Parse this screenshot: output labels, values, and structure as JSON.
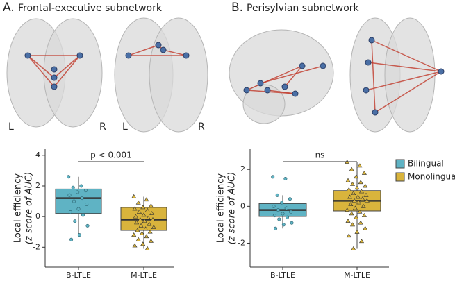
{
  "chart_data": [
    {
      "type": "box",
      "title": "A.",
      "subtitle": "Frontal-executive subnetwork",
      "brain_labels": [
        "L",
        "R",
        "L",
        "R"
      ],
      "y_label": "Local efficiency",
      "y_label_2": "(z score of AUC)",
      "annotation": "p < 0.001",
      "categories": [
        "B-LTLE",
        "M-LTLE"
      ],
      "ylim": [
        -3.3,
        4.4
      ],
      "yticks": [
        -2,
        0,
        2,
        4
      ],
      "series": [
        {
          "color": "#5fb3c4",
          "marker": "circle",
          "box": {
            "whisker_low": -1.2,
            "q1": 0.2,
            "median": 1.2,
            "q3": 1.8,
            "whisker_high": 2.6
          },
          "points": [
            2.6,
            2.0,
            1.9,
            1.7,
            1.6,
            1.4,
            1.2,
            1.0,
            0.8,
            0.5,
            0.3,
            0.1,
            -0.3,
            -0.6,
            -1.2,
            -1.5
          ]
        },
        {
          "color": "#d9b43c",
          "marker": "triangle",
          "box": {
            "whisker_low": -2.1,
            "q1": -0.9,
            "median": -0.2,
            "q3": 0.6,
            "whisker_high": 1.3
          },
          "points": [
            1.3,
            1.1,
            0.9,
            0.7,
            0.6,
            0.5,
            0.4,
            0.3,
            0.2,
            0.1,
            0.0,
            -0.1,
            -0.2,
            -0.2,
            -0.3,
            -0.4,
            -0.5,
            -0.6,
            -0.7,
            -0.8,
            -0.9,
            -1.0,
            -1.1,
            -1.2,
            -1.3,
            -1.5,
            -1.6,
            -1.8,
            -1.9,
            -2.1
          ]
        }
      ]
    },
    {
      "type": "box",
      "title": "B.",
      "subtitle": "Perisylvian subnetwork",
      "y_label": "Local efficiency",
      "y_label_2": "(z score of AUC)",
      "annotation": "ns",
      "legend": "right",
      "categories": [
        "B-LTLE",
        "M-LTLE"
      ],
      "ylim": [
        -3.3,
        3.1
      ],
      "yticks": [
        -2,
        0,
        2
      ],
      "series": [
        {
          "name": "Bilingual",
          "color": "#5fb3c4",
          "marker": "circle",
          "box": {
            "whisker_low": -1.2,
            "q1": -0.55,
            "median": -0.2,
            "q3": 0.15,
            "whisker_high": 0.6
          },
          "points": [
            1.6,
            1.5,
            0.6,
            0.4,
            0.2,
            0.0,
            -0.1,
            -0.2,
            -0.3,
            -0.4,
            -0.5,
            -0.6,
            -0.7,
            -0.9,
            -1.0,
            -1.2
          ]
        },
        {
          "name": "Monolingual",
          "color": "#d9b43c",
          "marker": "triangle",
          "box": {
            "whisker_low": -2.3,
            "q1": -0.25,
            "median": 0.3,
            "q3": 0.85,
            "whisker_high": 2.4
          },
          "points": [
            2.4,
            2.2,
            2.0,
            1.8,
            1.6,
            1.4,
            1.3,
            1.2,
            1.1,
            1.0,
            0.9,
            0.8,
            0.7,
            0.6,
            0.5,
            0.5,
            0.4,
            0.3,
            0.3,
            0.2,
            0.1,
            0.0,
            -0.1,
            -0.2,
            -0.3,
            -0.4,
            -0.5,
            -0.6,
            -0.8,
            -0.9,
            -1.0,
            -1.2,
            -1.4,
            -1.6,
            -1.9,
            -2.3
          ]
        }
      ]
    }
  ]
}
